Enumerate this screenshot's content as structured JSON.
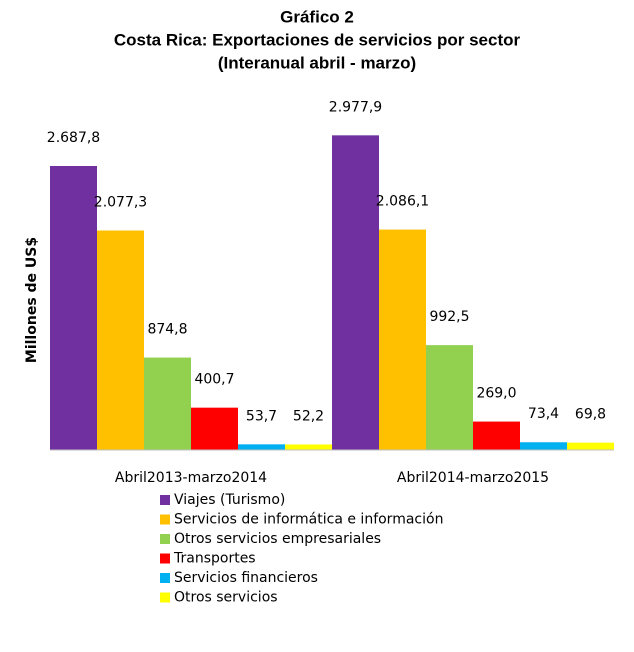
{
  "chart_data": {
    "type": "bar",
    "title": [
      "Gráfico 2",
      "Costa Rica: Exportaciones de servicios por sector",
      "(Interanual abril - marzo)"
    ],
    "ylabel": "Millones de US$",
    "categories": [
      "Abril2013-marzo2014",
      "Abril2014-marzo2015"
    ],
    "ylim": [
      0,
      3000
    ],
    "series": [
      {
        "name": "Viajes (Turismo)",
        "color": "#7030a0",
        "values": [
          2687.8,
          2977.9
        ],
        "value_labels": [
          "2.687,8",
          "2.977,9"
        ]
      },
      {
        "name": "Servicios de informática e información",
        "color": "#ffc000",
        "values": [
          2077.3,
          2086.1
        ],
        "value_labels": [
          "2.077,3",
          "2.086,1"
        ]
      },
      {
        "name": "Otros servicios empresariales",
        "color": "#92d050",
        "values": [
          874.8,
          992.5
        ],
        "value_labels": [
          "874,8",
          "992,5"
        ]
      },
      {
        "name": "Transportes",
        "color": "#ff0000",
        "values": [
          400.7,
          269.0
        ],
        "value_labels": [
          "400,7",
          "269,0"
        ]
      },
      {
        "name": "Servicios financieros",
        "color": "#00b0f0",
        "values": [
          53.7,
          73.4
        ],
        "value_labels": [
          "53,7",
          "73,4"
        ]
      },
      {
        "name": "Otros servicios",
        "color": "#ffff00",
        "values": [
          52.2,
          69.8
        ],
        "value_labels": [
          "52,2",
          "69,8"
        ]
      }
    ]
  }
}
